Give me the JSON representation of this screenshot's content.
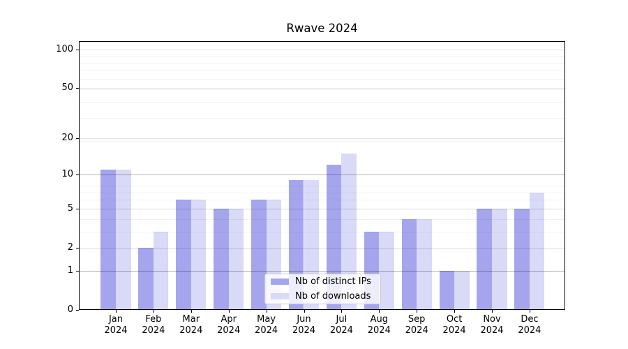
{
  "title": "Rwave 2024",
  "chart_data": {
    "type": "bar",
    "title": "Rwave 2024",
    "categories": [
      "Jan",
      "Feb",
      "Mar",
      "Apr",
      "May",
      "Jun",
      "Jul",
      "Aug",
      "Sep",
      "Oct",
      "Nov",
      "Dec"
    ],
    "category_year_label": "2024",
    "series": [
      {
        "name": "Nb of distinct IPs",
        "color": "#a5a5ee",
        "values": [
          11,
          2,
          6,
          5,
          6,
          9,
          12,
          3,
          4,
          1,
          5,
          5
        ]
      },
      {
        "name": "Nb of downloads",
        "color": "#d9d9f8",
        "values": [
          11,
          3,
          6,
          5,
          6,
          9,
          15,
          3,
          4,
          1,
          5,
          7
        ]
      }
    ],
    "xlabel": "",
    "ylabel": "",
    "yscale": "log1p",
    "yticks": [
      0,
      1,
      2,
      5,
      10,
      20,
      50,
      100
    ],
    "ylim": [
      0,
      115
    ],
    "grid": "horizontal",
    "legend_position": "lower-center-inside",
    "strong_gridline_values": [
      1,
      10
    ],
    "light_gridline_values": [
      2,
      5,
      20,
      50,
      100
    ]
  },
  "colors": {
    "background": "#ffffff",
    "spine": "#000000",
    "bar_ips": "#a5a5ee",
    "bar_downloads": "#d9d9f8",
    "legend_border": "#c9c9c9"
  }
}
